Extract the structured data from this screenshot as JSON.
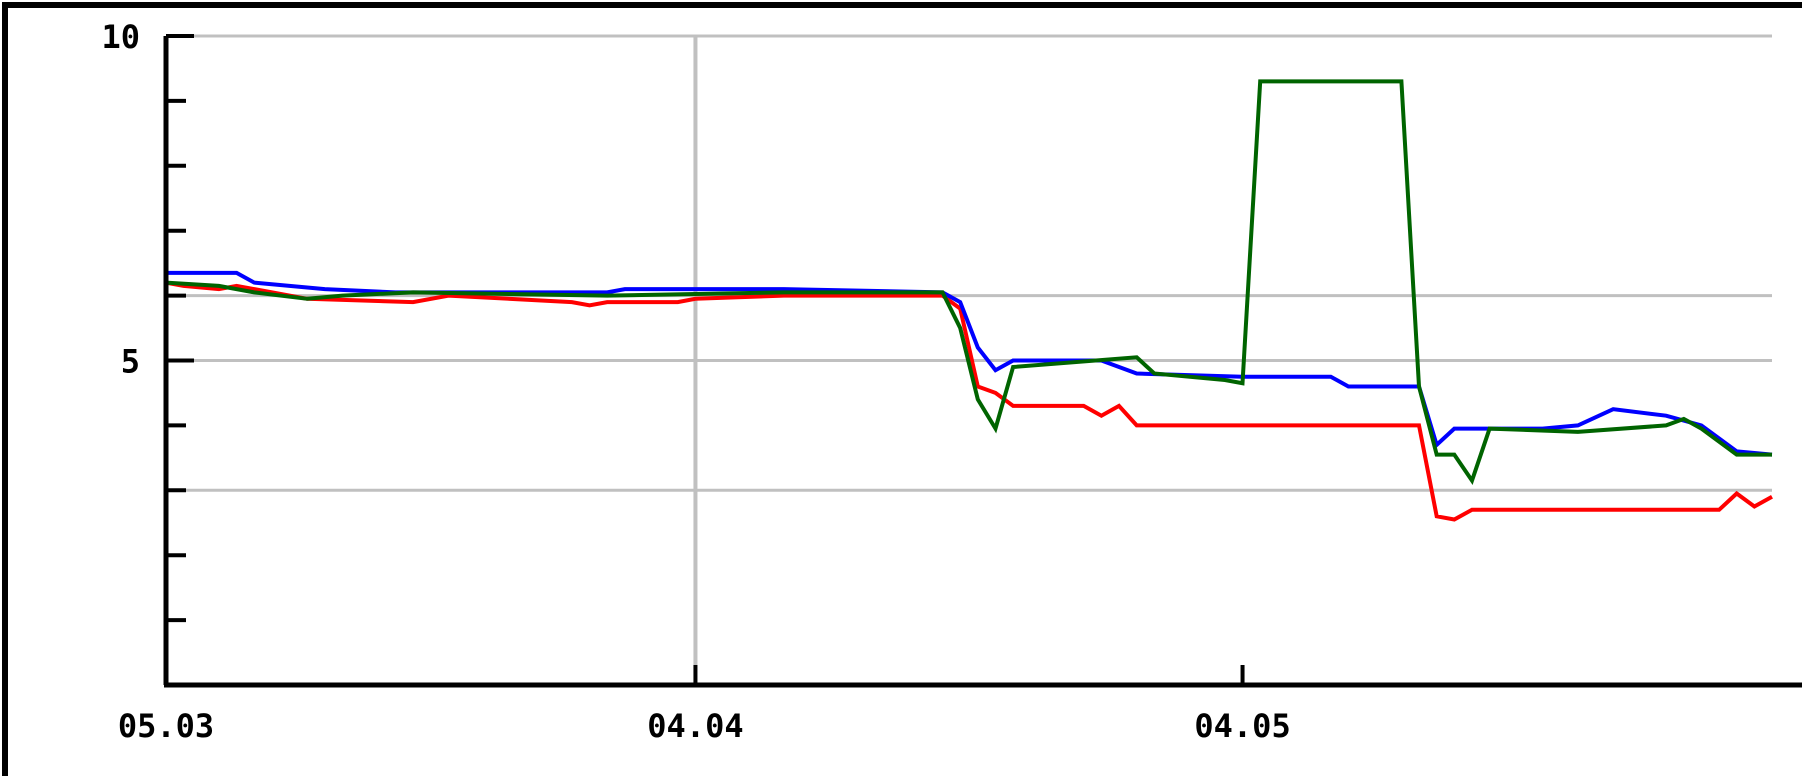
{
  "chart_data": {
    "type": "line",
    "title": "",
    "xlabel": "",
    "ylabel": "",
    "xlim": [
      0,
      91
    ],
    "ylim": [
      0,
      10
    ],
    "y_ticks": [
      {
        "value": 10,
        "label": "10"
      },
      {
        "value": 5,
        "label": "5"
      }
    ],
    "y_minor_ticks": [
      9,
      8,
      7,
      6,
      4,
      3,
      2,
      1
    ],
    "y_gridlines": [
      10,
      6,
      5,
      3
    ],
    "x_ticks": [
      {
        "value": 0,
        "label": "05.03"
      },
      {
        "value": 30,
        "label": "04.04"
      },
      {
        "value": 61,
        "label": "04.05"
      }
    ],
    "x_gridlines": [
      30
    ],
    "grid": true,
    "legend": "none",
    "colors": {
      "frame": "#000000",
      "grid": "#c0c0c0",
      "red": "#ff0000",
      "blue": "#0000ff",
      "green": "#006400"
    },
    "series": [
      {
        "color": "#ff0000",
        "points": [
          [
            0,
            6.2
          ],
          [
            1,
            6.15
          ],
          [
            3,
            6.1
          ],
          [
            4,
            6.15
          ],
          [
            8,
            5.95
          ],
          [
            14,
            5.9
          ],
          [
            16,
            6.0
          ],
          [
            23,
            5.9
          ],
          [
            24,
            5.85
          ],
          [
            25,
            5.9
          ],
          [
            29,
            5.9
          ],
          [
            30,
            5.95
          ],
          [
            35,
            6.0
          ],
          [
            44,
            6.0
          ],
          [
            45,
            5.8
          ],
          [
            46,
            4.6
          ],
          [
            47,
            4.5
          ],
          [
            48,
            4.3
          ],
          [
            52,
            4.3
          ],
          [
            53,
            4.15
          ],
          [
            54,
            4.3
          ],
          [
            55,
            4.0
          ],
          [
            71,
            4.0
          ],
          [
            72,
            2.6
          ],
          [
            73,
            2.55
          ],
          [
            74,
            2.7
          ],
          [
            88,
            2.7
          ],
          [
            89,
            2.95
          ],
          [
            90,
            2.75
          ],
          [
            91,
            2.9
          ]
        ]
      },
      {
        "color": "#0000ff",
        "points": [
          [
            0,
            6.35
          ],
          [
            4,
            6.35
          ],
          [
            5,
            6.2
          ],
          [
            9,
            6.1
          ],
          [
            13,
            6.05
          ],
          [
            25,
            6.05
          ],
          [
            26,
            6.1
          ],
          [
            35,
            6.1
          ],
          [
            44,
            6.05
          ],
          [
            45,
            5.9
          ],
          [
            46,
            5.2
          ],
          [
            47,
            4.85
          ],
          [
            48,
            5.0
          ],
          [
            53,
            5.0
          ],
          [
            55,
            4.8
          ],
          [
            61,
            4.75
          ],
          [
            66,
            4.75
          ],
          [
            67,
            4.6
          ],
          [
            71,
            4.6
          ],
          [
            72,
            3.7
          ],
          [
            73,
            3.95
          ],
          [
            78,
            3.95
          ],
          [
            80,
            4.0
          ],
          [
            82,
            4.25
          ],
          [
            85,
            4.15
          ],
          [
            87,
            4.0
          ],
          [
            89,
            3.6
          ],
          [
            91,
            3.55
          ]
        ]
      },
      {
        "color": "#006400",
        "points": [
          [
            0,
            6.2
          ],
          [
            3,
            6.15
          ],
          [
            5,
            6.05
          ],
          [
            8,
            5.95
          ],
          [
            10,
            6.0
          ],
          [
            14,
            6.05
          ],
          [
            25,
            6.0
          ],
          [
            35,
            6.05
          ],
          [
            44,
            6.05
          ],
          [
            45,
            5.5
          ],
          [
            46,
            4.4
          ],
          [
            47,
            3.95
          ],
          [
            48,
            4.9
          ],
          [
            55,
            5.05
          ],
          [
            56,
            4.8
          ],
          [
            60,
            4.7
          ],
          [
            61,
            4.65
          ],
          [
            62,
            9.3
          ],
          [
            70,
            9.3
          ],
          [
            71,
            4.6
          ],
          [
            72,
            3.55
          ],
          [
            73,
            3.55
          ],
          [
            74,
            3.15
          ],
          [
            75,
            3.95
          ],
          [
            80,
            3.9
          ],
          [
            85,
            4.0
          ],
          [
            86,
            4.1
          ],
          [
            87,
            3.95
          ],
          [
            89,
            3.55
          ],
          [
            91,
            3.55
          ]
        ]
      }
    ]
  }
}
